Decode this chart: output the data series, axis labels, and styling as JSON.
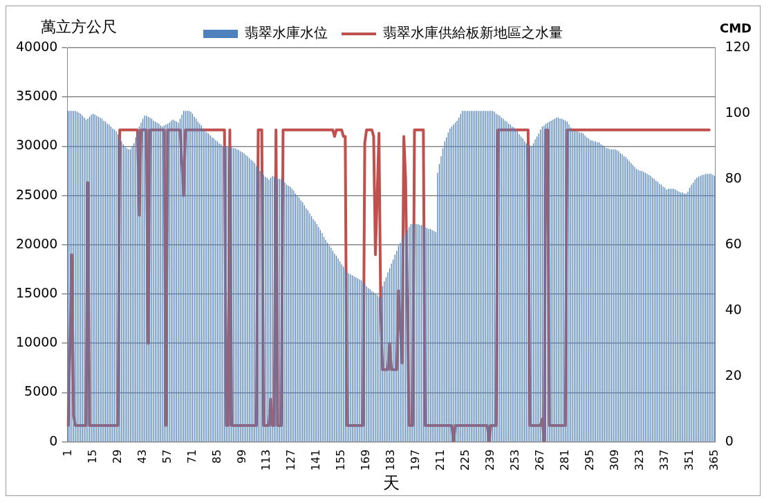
{
  "chart_data": {
    "type": "bar",
    "ylabel": "萬立方公尺",
    "y2label": "CMD",
    "xlabel": "天",
    "categories": [
      "1",
      null,
      null,
      null,
      null,
      null,
      null,
      null,
      null,
      null,
      null,
      null,
      null,
      null,
      "15",
      null,
      null,
      null,
      null,
      null,
      null,
      null,
      null,
      null,
      null,
      null,
      null,
      null,
      "29",
      null,
      null,
      null,
      null,
      null,
      null,
      null,
      null,
      null,
      null,
      null,
      null,
      null,
      "43",
      null,
      null,
      null,
      null,
      null,
      null,
      null,
      null,
      null,
      null,
      null,
      null,
      null,
      "57",
      null,
      null,
      null,
      null,
      null,
      null,
      null,
      null,
      null,
      null,
      null,
      null,
      null,
      "71",
      null,
      null,
      null,
      null,
      null,
      null,
      null,
      null,
      null,
      null,
      null,
      null,
      null,
      "85",
      null,
      null,
      null,
      null,
      null,
      null,
      null,
      null,
      null,
      null,
      null,
      null,
      null,
      "99",
      null,
      null,
      null,
      null,
      null,
      null,
      null,
      null,
      null,
      null,
      null,
      null,
      null,
      "113",
      null,
      null,
      null,
      null,
      null,
      null,
      null,
      null,
      null,
      null,
      null,
      null,
      null,
      "127",
      null,
      null,
      null,
      null,
      null,
      null,
      null,
      null,
      null,
      null,
      null,
      null,
      null,
      "141",
      null,
      null,
      null,
      null,
      null,
      null,
      null,
      null,
      null,
      null,
      null,
      null,
      null,
      "155",
      null,
      null,
      null,
      null,
      null,
      null,
      null,
      null,
      null,
      null,
      null,
      null,
      null,
      "169",
      null,
      null,
      null,
      null,
      null,
      null,
      null,
      null,
      null,
      null,
      null,
      null,
      null,
      "183",
      null,
      null,
      null,
      null,
      null,
      null,
      null,
      null,
      null,
      null,
      null,
      null,
      null,
      "197",
      null,
      null,
      null,
      null,
      null,
      null,
      null,
      null,
      null,
      null,
      null,
      null,
      null,
      "211",
      null,
      null,
      null,
      null,
      null,
      null,
      null,
      null,
      null,
      null,
      null,
      null,
      null,
      "225",
      null,
      null,
      null,
      null,
      null,
      null,
      null,
      null,
      null,
      null,
      null,
      null,
      null,
      "239",
      null,
      null,
      null,
      null,
      null,
      null,
      null,
      null,
      null,
      null,
      null,
      null,
      null,
      "253",
      null,
      null,
      null,
      null,
      null,
      null,
      null,
      null,
      null,
      null,
      null,
      null,
      null,
      "267",
      null,
      null,
      null,
      null,
      null,
      null,
      null,
      null,
      null,
      null,
      null,
      null,
      null,
      "281",
      null,
      null,
      null,
      null,
      null,
      null,
      null,
      null,
      null,
      null,
      null,
      null,
      null,
      "295",
      null,
      null,
      null,
      null,
      null,
      null,
      null,
      null,
      null,
      null,
      null,
      null,
      null,
      "309",
      null,
      null,
      null,
      null,
      null,
      null,
      null,
      null,
      null,
      null,
      null,
      null,
      null,
      "323",
      null,
      null,
      null,
      null,
      null,
      null,
      null,
      null,
      null,
      null,
      null,
      null,
      null,
      "337",
      null,
      null,
      null,
      null,
      null,
      null,
      null,
      null,
      null,
      null,
      null,
      null,
      null,
      "351",
      null,
      null,
      null,
      null,
      null,
      null,
      null,
      null,
      null,
      null,
      null,
      null,
      null,
      "365"
    ],
    "series": [
      {
        "name": "翡翠水庫水位",
        "color": "#4f81bd",
        "values": [
          33600,
          33600,
          33600,
          33600,
          33600,
          33500,
          33400,
          33300,
          33100,
          32900,
          32700,
          32800,
          33000,
          33200,
          33300,
          33200,
          33100,
          33000,
          32900,
          32800,
          32600,
          32500,
          32300,
          32200,
          32000,
          31800,
          31700,
          31500,
          31200,
          30800,
          30500,
          30200,
          30000,
          29800,
          29700,
          29700,
          30000,
          30300,
          30900,
          31400,
          32000,
          32400,
          32800,
          33100,
          33100,
          33000,
          32900,
          32800,
          32600,
          32500,
          32400,
          32300,
          32100,
          32000,
          32100,
          32200,
          32300,
          32400,
          32600,
          32700,
          32600,
          32500,
          32400,
          32800,
          33200,
          33600,
          33600,
          33600,
          33600,
          33500,
          33300,
          33000,
          32800,
          32500,
          32300,
          32100,
          31800,
          31600,
          31400,
          31300,
          31100,
          30900,
          30800,
          30600,
          30500,
          30300,
          30200,
          30000,
          30000,
          30000,
          29900,
          29900,
          29900,
          29800,
          29800,
          29700,
          29600,
          29500,
          29400,
          29300,
          29100,
          29000,
          28800,
          28600,
          28500,
          28300,
          28000,
          27800,
          27500,
          27300,
          27100,
          26900,
          26800,
          26600,
          26800,
          27000,
          26900,
          26800,
          26700,
          26700,
          26700,
          26500,
          26300,
          26100,
          26000,
          25900,
          25700,
          25500,
          25200,
          25000,
          24800,
          24500,
          24300,
          24000,
          23700,
          23500,
          23200,
          22900,
          22600,
          22400,
          22100,
          21800,
          21500,
          21200,
          20800,
          20500,
          20200,
          19900,
          19700,
          19400,
          19100,
          18900,
          18600,
          18300,
          18000,
          17800,
          17500,
          17200,
          17100,
          17000,
          16900,
          16800,
          16700,
          16600,
          16500,
          16400,
          16200,
          16000,
          15800,
          15600,
          15500,
          15300,
          15200,
          15000,
          14900,
          14700,
          14600,
          15800,
          16300,
          16700,
          17200,
          17600,
          18100,
          18500,
          19000,
          19400,
          19900,
          20200,
          20600,
          20900,
          21200,
          21500,
          21800,
          22100,
          22100,
          22100,
          22100,
          22100,
          22000,
          22000,
          21900,
          21800,
          21700,
          21600,
          21600,
          21500,
          21400,
          21300,
          27300,
          28200,
          29000,
          29800,
          30500,
          30900,
          31400,
          31800,
          32000,
          32200,
          32400,
          32600,
          32900,
          33300,
          33600,
          33600,
          33600,
          33600,
          33600,
          33600,
          33600,
          33600,
          33600,
          33600,
          33600,
          33600,
          33600,
          33600,
          33600,
          33600,
          33600,
          33600,
          33500,
          33300,
          33200,
          33100,
          32900,
          32800,
          32600,
          32500,
          32300,
          32200,
          32000,
          31900,
          31700,
          31500,
          31200,
          31000,
          30800,
          30500,
          30300,
          30200,
          30100,
          30000,
          30300,
          30700,
          31000,
          31300,
          31700,
          32000,
          32100,
          32300,
          32400,
          32500,
          32600,
          32700,
          32800,
          32900,
          32900,
          32800,
          32800,
          32700,
          32600,
          32500,
          32200,
          31900,
          31600,
          31600,
          31500,
          31500,
          31400,
          31400,
          31300,
          31100,
          30900,
          30800,
          30600,
          30600,
          30500,
          30500,
          30400,
          30400,
          30200,
          30100,
          30000,
          29800,
          29800,
          29700,
          29700,
          29700,
          29700,
          29600,
          29500,
          29300,
          29200,
          29000,
          28900,
          28700,
          28500,
          28300,
          28100,
          27900,
          27700,
          27600,
          27500,
          27500,
          27400,
          27300,
          27200,
          27100,
          27000,
          26800,
          26700,
          26500,
          26400,
          26200,
          26100,
          25900,
          25800,
          25600,
          25700,
          25700,
          25700,
          25700,
          25600,
          25500,
          25400,
          25300,
          25300,
          25200,
          25200,
          25400,
          25800,
          26100,
          26300,
          26600,
          26800,
          26900,
          27000,
          27100,
          27100,
          27200,
          27200,
          27200,
          27200,
          27100,
          27000
        ]
      },
      {
        "type": "line",
        "name": "翡翠水庫供給板新地區之水量",
        "color": "#c0504d",
        "axis": "y2",
        "values": [
          5,
          30,
          57,
          8,
          5,
          5,
          5,
          5,
          5,
          5,
          5,
          79,
          5,
          5,
          5,
          5,
          5,
          5,
          5,
          5,
          5,
          5,
          5,
          5,
          5,
          5,
          5,
          5,
          5,
          95,
          95,
          95,
          95,
          95,
          95,
          95,
          95,
          95,
          95,
          95,
          69,
          95,
          95,
          95,
          95,
          30,
          95,
          95,
          95,
          95,
          95,
          95,
          95,
          95,
          95,
          5,
          95,
          95,
          95,
          95,
          95,
          95,
          95,
          95,
          85,
          75,
          95,
          95,
          95,
          95,
          95,
          95,
          95,
          95,
          95,
          95,
          95,
          95,
          95,
          95,
          95,
          95,
          95,
          95,
          95,
          95,
          95,
          95,
          95,
          5,
          5,
          95,
          5,
          5,
          5,
          5,
          5,
          5,
          5,
          5,
          5,
          5,
          5,
          5,
          5,
          5,
          5,
          95,
          95,
          95,
          5,
          5,
          5,
          5,
          13,
          5,
          5,
          95,
          5,
          5,
          5,
          95,
          95,
          95,
          95,
          95,
          95,
          95,
          95,
          95,
          95,
          95,
          95,
          95,
          95,
          95,
          95,
          95,
          95,
          95,
          95,
          95,
          95,
          95,
          95,
          95,
          95,
          95,
          95,
          95,
          93,
          95,
          95,
          95,
          95,
          93,
          93,
          5,
          5,
          5,
          5,
          5,
          5,
          5,
          5,
          5,
          5,
          91,
          95,
          95,
          95,
          95,
          93,
          57,
          75,
          94,
          40,
          22,
          22,
          22,
          22,
          30,
          22,
          22,
          22,
          22,
          46,
          35,
          24,
          93,
          80,
          40,
          5,
          5,
          5,
          95,
          95,
          95,
          95,
          95,
          95,
          5,
          5,
          5,
          5,
          5,
          5,
          5,
          5,
          5,
          5,
          5,
          5,
          5,
          5,
          5,
          5,
          0,
          5,
          5,
          5,
          5,
          5,
          5,
          5,
          5,
          5,
          5,
          5,
          5,
          5,
          5,
          5,
          5,
          5,
          5,
          5,
          0,
          5,
          5,
          5,
          5,
          95,
          95,
          95,
          95,
          95,
          95,
          95,
          95,
          95,
          95,
          95,
          95,
          95,
          95,
          95,
          95,
          95,
          95,
          5,
          5,
          5,
          5,
          5,
          5,
          5,
          7,
          0,
          95,
          95,
          5,
          5,
          5,
          5,
          5,
          5,
          5,
          5,
          5,
          5,
          95,
          95,
          95,
          95,
          95,
          95,
          95,
          95,
          95,
          95,
          95,
          95,
          95,
          95,
          95,
          95,
          95,
          95,
          95,
          95,
          95,
          95,
          95,
          95,
          95,
          95,
          95,
          95,
          95,
          95,
          95,
          95,
          95,
          95,
          95,
          95,
          95,
          95,
          95,
          95,
          95,
          95,
          95,
          95,
          95,
          95,
          95,
          95,
          95,
          95,
          95,
          95,
          95,
          95,
          95,
          95,
          95,
          95,
          95,
          95,
          95,
          95,
          95,
          95,
          95,
          95,
          95,
          95,
          95,
          95,
          95,
          95,
          95,
          95,
          95,
          95,
          95,
          95,
          95,
          95,
          95,
          null,
          null,
          null
        ]
      }
    ],
    "ylim": [
      0,
      40000
    ],
    "yticks": [
      0,
      5000,
      10000,
      15000,
      20000,
      25000,
      30000,
      35000,
      40000
    ],
    "y2lim": [
      0,
      120
    ],
    "y2ticks": [
      0,
      20,
      40,
      60,
      80,
      100,
      120
    ],
    "grid": "y",
    "legend": "top",
    "line_style": "solid"
  }
}
